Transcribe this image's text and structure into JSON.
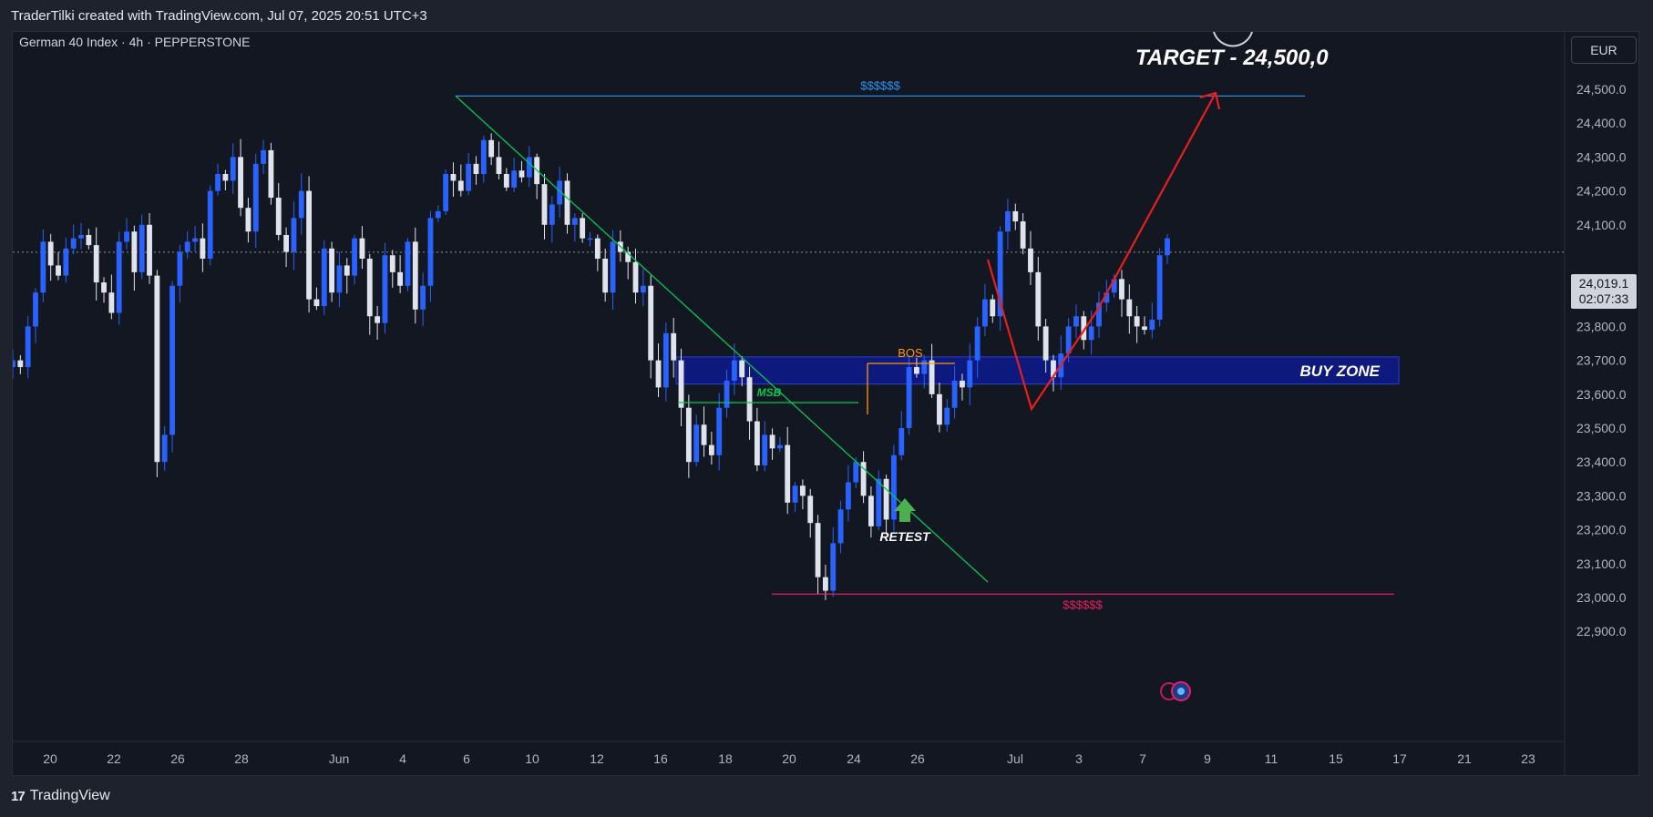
{
  "header": {
    "caption": "TraderTilki created with TradingView.com, Jul 07, 2025 20:51 UTC+3"
  },
  "chart": {
    "symbol_line": "German 40 Index · 4h · PEPPERSTONE",
    "currency": "EUR",
    "last_price": "24,019.1",
    "countdown": "02:07:33"
  },
  "footer": {
    "brand_icon": "tradingview-logo-icon",
    "brand": "TradingView"
  },
  "annotations": {
    "target": "TARGET - 24,500,0",
    "buy_zone": "BUY ZONE",
    "bos": "BOS",
    "msb": "MSB",
    "retest": "RETEST",
    "liquidity_top": "$$$$$$",
    "liquidity_bottom": "$$$$$$"
  },
  "colors": {
    "background": "#131722",
    "bull_candle": "#2962ff",
    "bear_candle": "#e0e3eb",
    "trendline": "#00c853",
    "projection": "#e91e1e",
    "buy_zone_fill": "#0d1a8c",
    "liquidity_top": "#2196f3",
    "liquidity_bottom": "#e91e63",
    "bos_line": "#ff9800",
    "retest_arrow": "#4caf50"
  },
  "chart_data": {
    "type": "candlestick",
    "title": "German 40 Index · 4h · PEPPERSTONE",
    "ylim": [
      22850,
      24650
    ],
    "y_ticks": [
      "24,500.0",
      "24,400.0",
      "24,300.0",
      "24,200.0",
      "24,100.0",
      "24,000.0",
      "23,900.0",
      "23,800.0",
      "23,700.0",
      "23,600.0",
      "23,500.0",
      "23,400.0",
      "23,300.0",
      "23,200.0",
      "23,100.0",
      "23,000.0",
      "22,900.0"
    ],
    "x_ticks": [
      "20",
      "22",
      "26",
      "28",
      "Jun",
      "4",
      "6",
      "10",
      "12",
      "16",
      "18",
      "20",
      "24",
      "26",
      "Jul",
      "3",
      "7",
      "9",
      "11",
      "15",
      "17",
      "21",
      "23"
    ],
    "close_path": [
      23700,
      23680,
      23800,
      23900,
      24050,
      23980,
      23950,
      24030,
      24060,
      24070,
      24040,
      23930,
      23900,
      23840,
      24050,
      24080,
      23960,
      24100,
      23950,
      23400,
      23480,
      23920,
      24020,
      24050,
      24060,
      24000,
      24200,
      24250,
      24230,
      24300,
      24150,
      24080,
      24280,
      24320,
      24180,
      24070,
      24020,
      24120,
      24200,
      23880,
      23860,
      24030,
      23900,
      23980,
      23950,
      24060,
      24000,
      23830,
      23810,
      24010,
      23960,
      23920,
      24050,
      23850,
      23920,
      24120,
      24140,
      24250,
      24230,
      24200,
      24280,
      24250,
      24350,
      24300,
      24250,
      24210,
      24260,
      24240,
      24300,
      24220,
      24100,
      24160,
      24230,
      24100,
      24120,
      24060,
      24060,
      24000,
      23900,
      24050,
      24020,
      23990,
      23900,
      23920,
      23700,
      23620,
      23780,
      23700,
      23560,
      23400,
      23510,
      23450,
      23420,
      23560,
      23640,
      23700,
      23650,
      23520,
      23390,
      23480,
      23440,
      23450,
      23280,
      23330,
      23300,
      23220,
      23060,
      23020,
      23160,
      23260,
      23340,
      23400,
      23300,
      23210,
      23350,
      23230,
      23420,
      23500,
      23680,
      23660,
      23700,
      23600,
      23510,
      23560,
      23640,
      23620,
      23700,
      23800,
      23880,
      23830,
      24080,
      24140,
      24110,
      24030,
      23960,
      23800,
      23700,
      23650,
      23720,
      23800,
      23830,
      23760,
      23800,
      23870,
      23900,
      23940,
      23880,
      23830,
      23800,
      23790,
      23820,
      24010,
      24060
    ],
    "series": [
      {
        "name": "",
        "type": "line",
        "values": [
          24480,
          24480
        ]
      },
      {
        "name": "",
        "type": "line",
        "values": [
          23010,
          23010
        ]
      }
    ],
    "zones": [
      {
        "label": "BUY ZONE",
        "from": 23630,
        "to": 23710
      }
    ],
    "current_price": 24019.1,
    "target": 24500
  }
}
